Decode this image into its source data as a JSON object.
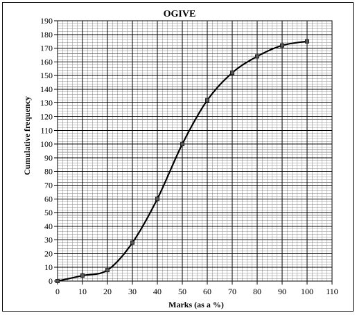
{
  "chart_data": {
    "type": "line",
    "title": "OGIVE",
    "xlabel": "Marks (as a %)",
    "ylabel": "Cumulative frequency",
    "xlim": [
      0,
      110
    ],
    "ylim": [
      0,
      190
    ],
    "x_ticks": [
      0,
      10,
      20,
      30,
      40,
      50,
      60,
      70,
      80,
      90,
      100,
      110
    ],
    "y_ticks": [
      0,
      10,
      20,
      30,
      40,
      50,
      60,
      70,
      80,
      90,
      100,
      110,
      120,
      130,
      140,
      150,
      160,
      170,
      180,
      190
    ],
    "grid": true,
    "minor_grid_per_major": 5,
    "series": [
      {
        "x": [
          0,
          10,
          20,
          30,
          40,
          50,
          60,
          70,
          80,
          90,
          100
        ],
        "values": [
          0,
          4,
          8,
          28,
          60,
          100,
          132,
          152,
          164,
          172,
          175
        ],
        "color": "#000000",
        "marker": "square",
        "smooth": true
      }
    ]
  }
}
